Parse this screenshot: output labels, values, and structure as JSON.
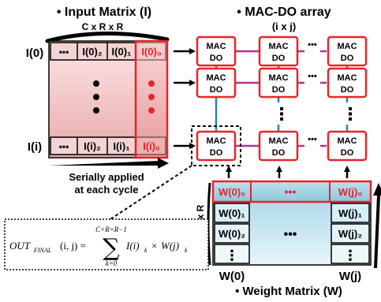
{
  "input_matrix": {
    "title": "• Input Matrix (I)",
    "dims": "C x R x R",
    "row_top_label": "I(0)",
    "row_bottom_label": "I(i)",
    "cells_top": [
      "•••",
      "I(0)₂",
      "I(0)₁",
      "I(0)₀"
    ],
    "cells_bottom": [
      "•••",
      "I(i)₂",
      "I(i)₁",
      "I(i)₀"
    ],
    "caption_line1": "Serially applied",
    "caption_line2": "at each cycle"
  },
  "mac_array": {
    "title": "• MAC-DO array",
    "dims": "(i x j)",
    "cell_line1": "MAC",
    "cell_line2": "DO",
    "dots_h": "•••",
    "dots_v": "⋮"
  },
  "weight_matrix": {
    "side_label": "C x R x R",
    "top_row": [
      "W(0)₀",
      "•••",
      "W(j)₀"
    ],
    "left_col": [
      "W(0)₁",
      "W(0)₂",
      "⋮"
    ],
    "right_col": [
      "W(j)₁",
      "W(j)₂",
      "⋮"
    ],
    "center_dots": "•••",
    "bottom_left": "W(0)",
    "bottom_right": "W(j)",
    "title": "• Weight Matrix (W)"
  },
  "formula": {
    "lhs": "OUT",
    "lhs_sub": "FINAL",
    "lhs_args": "(i, j) =",
    "sum_upper": "C×R×R−1",
    "sum_symbol": "∑",
    "sum_lower": "k=0",
    "body": "I(i)",
    "body_sub": "k",
    "times": "×",
    "body2": "W(j)",
    "body2_sub": "k"
  },
  "colors": {
    "mac_border": "#e8232a",
    "horizontal_link": "#b3309a",
    "vertical_link": "#2f7fbf",
    "dots_red": "#e8232a",
    "input_matrix_fill": "#f2c3c3",
    "weight_matrix_fill": "#a7d6e6"
  }
}
